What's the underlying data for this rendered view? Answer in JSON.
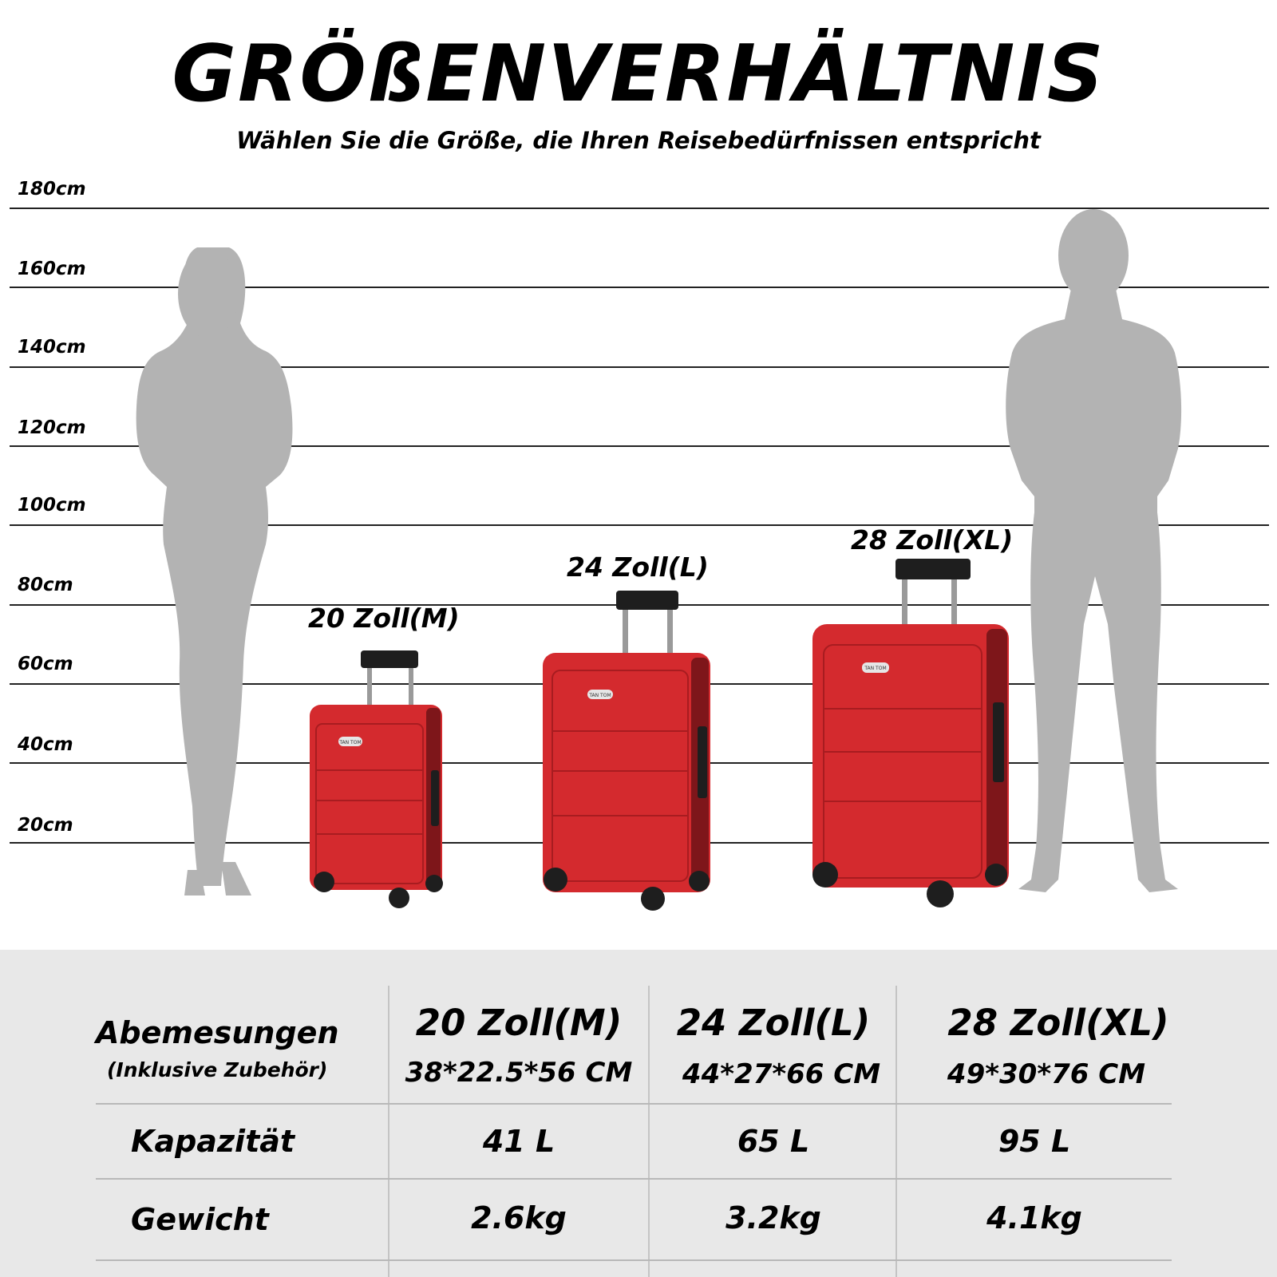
{
  "header": {
    "title": "GRÖßENVERHÄLTNIS",
    "subtitle": "Wählen Sie die Größe, die Ihren Reisebedürfnissen entspricht"
  },
  "scale": {
    "labels": [
      "180cm",
      "160cm",
      "140cm",
      "120cm",
      "100cm",
      "80cm",
      "60cm",
      "40cm",
      "20cm"
    ]
  },
  "suitcases": [
    {
      "label": "20 Zoll(M)",
      "brand": "TAN TOM",
      "color": "#d42a2e"
    },
    {
      "label": "24 Zoll(L)",
      "brand": "TAN TOM",
      "color": "#d42a2e"
    },
    {
      "label": "28 Zoll(XL)",
      "brand": "TAN TOM",
      "color": "#d42a2e"
    }
  ],
  "table": {
    "header_label": "Abemesungen",
    "header_sublabel": "(Inklusive Zubehör)",
    "columns": [
      {
        "name": "20 Zoll(M)",
        "dimensions": "38*22.5*56 CM"
      },
      {
        "name": "24 Zoll(L)",
        "dimensions": "44*27*66 CM"
      },
      {
        "name": "28 Zoll(XL)",
        "dimensions": "49*30*76 CM"
      }
    ],
    "rows": [
      {
        "label": "Kapazität",
        "values": [
          "41 L",
          "65 L",
          "95 L"
        ]
      },
      {
        "label": "Gewicht",
        "values": [
          "2.6kg",
          "3.2kg",
          "4.1kg"
        ]
      }
    ]
  },
  "colors": {
    "silhouette": "#b3b3b3",
    "suitcase_red": "#d42a2e",
    "table_background": "#e8e8e8"
  }
}
